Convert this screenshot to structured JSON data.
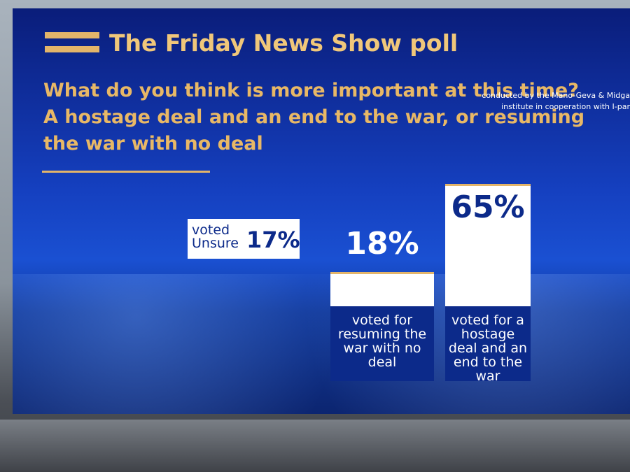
{
  "chart_data": {
    "type": "bar",
    "title": "The Friday News Show poll",
    "subtitle": [
      "What do you think is more important at this time?",
      "A hostage deal and an end to the war, or resuming",
      "the war with no deal"
    ],
    "source": [
      "conducted by the Mano-Geva & Midga",
      "institute in cooperation with I-par"
    ],
    "categories": [
      "voted Unsure",
      "voted for resuming the war with no deal",
      "voted for a hostage deal and an end to the war"
    ],
    "values": [
      17,
      18,
      65
    ],
    "value_labels": [
      "17%",
      "18%",
      "65%"
    ],
    "color": "#ffffff"
  }
}
